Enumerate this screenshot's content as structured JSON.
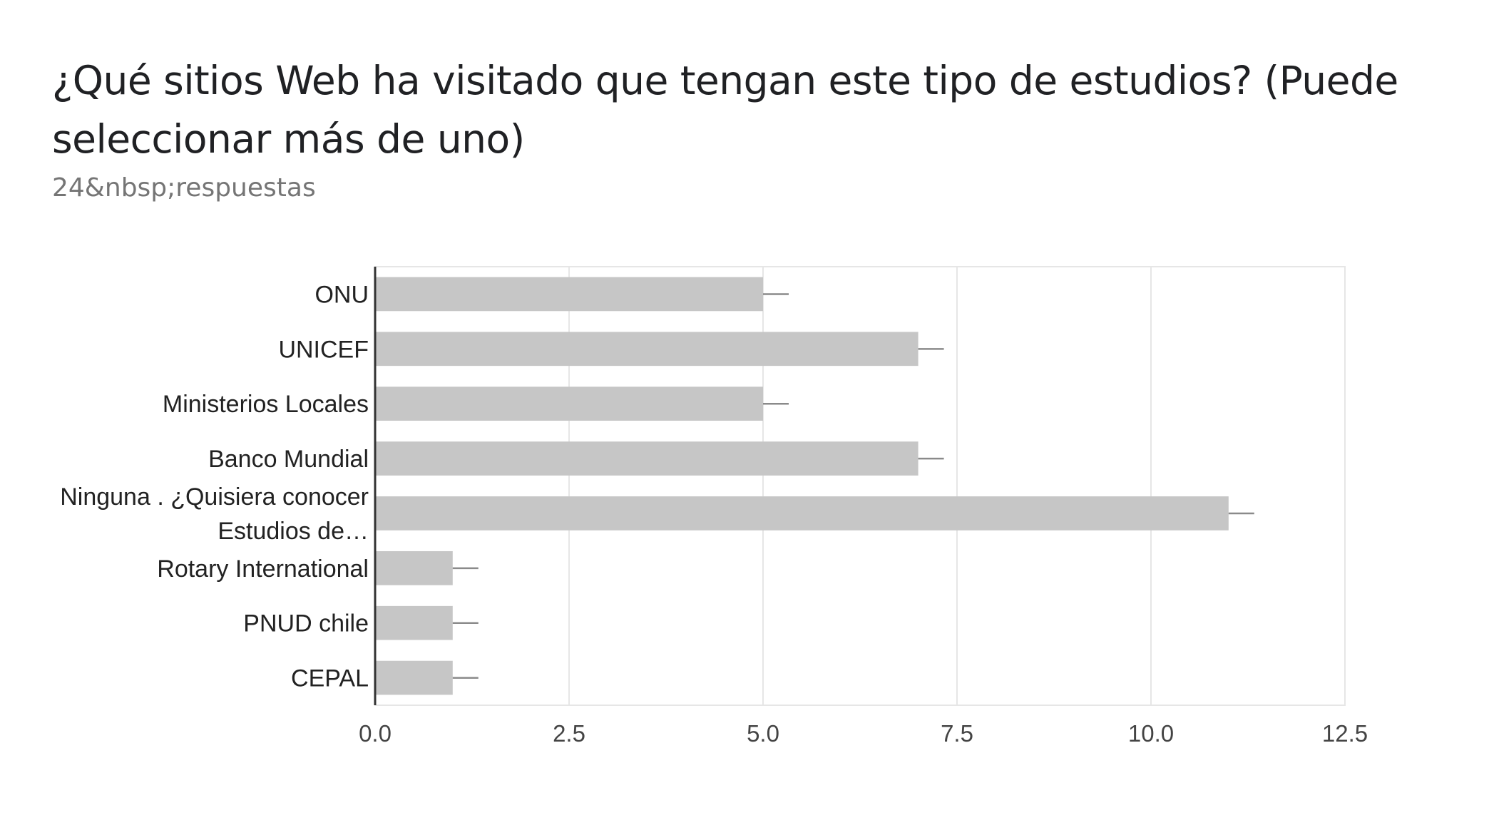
{
  "title": "¿Qué sitios Web ha visitado que tengan este tipo de estudios? (Puede seleccionar más de uno)",
  "subtitle": "24&nbsp;respuestas",
  "colors": {
    "bar": "#c6c6c6",
    "grid": "#e6e6e6",
    "axis": "#333333",
    "error_bar": "#8a8a8a"
  },
  "chart_data": {
    "type": "bar",
    "orientation": "horizontal",
    "categories": [
      [
        "ONU"
      ],
      [
        "UNICEF"
      ],
      [
        "Ministerios Locales"
      ],
      [
        "Banco Mundial"
      ],
      [
        "Ninguna . ¿Quisiera conocer",
        "Estudios de…"
      ],
      [
        "Rotary International"
      ],
      [
        "PNUD chile"
      ],
      [
        "CEPAL"
      ]
    ],
    "values": [
      5,
      7,
      5,
      7,
      11,
      1,
      1,
      1
    ],
    "xlim": [
      0,
      12.5
    ],
    "xticks": [
      "0.0",
      "2.5",
      "5.0",
      "7.5",
      "10.0",
      "12.5"
    ],
    "grid": true,
    "legend": "none",
    "error_bars": true
  }
}
